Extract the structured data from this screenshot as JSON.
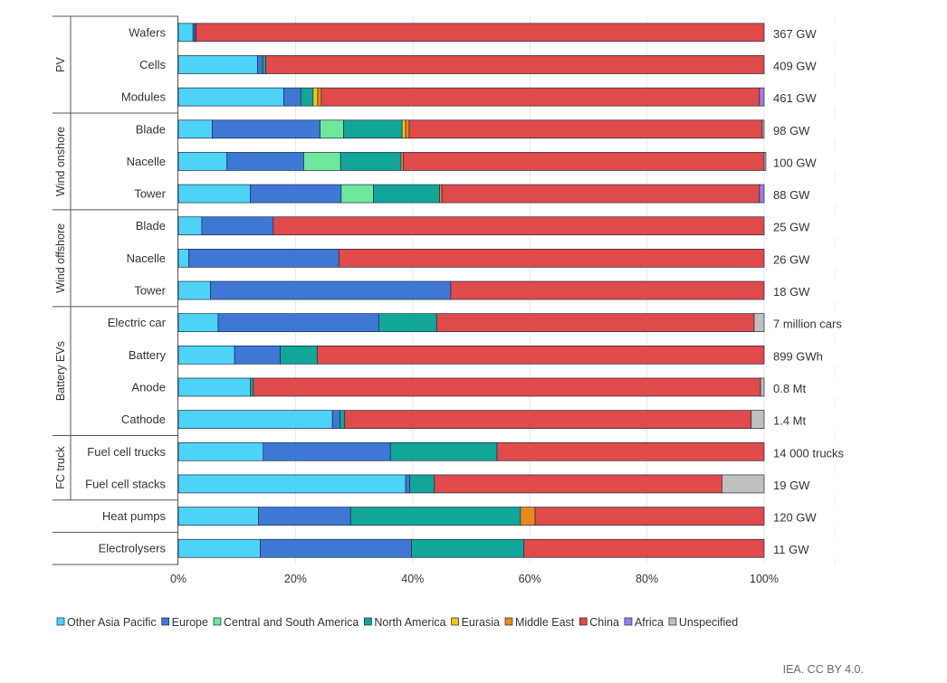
{
  "chart_data": {
    "type": "bar",
    "orientation": "horizontal",
    "stacked": true,
    "title": "",
    "xlabel": "",
    "ylabel": "",
    "xlim": [
      0,
      100
    ],
    "x_ticks": [
      "0%",
      "20%",
      "40%",
      "60%",
      "80%",
      "100%"
    ],
    "grid": "vertical",
    "legend_position": "bottom",
    "groups": [
      {
        "label": "PV",
        "categories": [
          "Wafers",
          "Cells",
          "Modules"
        ]
      },
      {
        "label": "Wind onshore",
        "categories": [
          "Blade",
          "Nacelle",
          "Tower"
        ]
      },
      {
        "label": "Wind offshore",
        "categories": [
          "Blade",
          "Nacelle",
          "Tower"
        ]
      },
      {
        "label": "Battery EVs",
        "categories": [
          "Electric car",
          "Battery",
          "Anode",
          "Cathode"
        ]
      },
      {
        "label": "FC truck",
        "categories": [
          "Fuel cell trucks",
          "Fuel cell stacks"
        ]
      },
      {
        "label": "",
        "categories": [
          "Heat pumps"
        ]
      },
      {
        "label": "",
        "categories": [
          "Electrolysers"
        ]
      }
    ],
    "categories": [
      "Wafers",
      "Cells",
      "Modules",
      "Blade",
      "Nacelle",
      "Tower",
      "Blade",
      "Nacelle",
      "Tower",
      "Electric car",
      "Battery",
      "Anode",
      "Cathode",
      "Fuel cell trucks",
      "Fuel cell stacks",
      "Heat pumps",
      "Electrolysers"
    ],
    "capacity_labels": [
      "367 GW",
      "409 GW",
      "461 GW",
      "98 GW",
      "100 GW",
      "88 GW",
      "25 GW",
      "26 GW",
      "18 GW",
      "7 million cars",
      "899 GWh",
      "0.8 Mt",
      "1.4 Mt",
      "14 000 trucks",
      "19 GW",
      "120 GW",
      "11 GW"
    ],
    "series": [
      {
        "name": "Other Asia Pacific",
        "color": "#4dd3f7",
        "values": [
          2.5,
          13.5,
          18.0,
          5.8,
          8.3,
          12.3,
          4.0,
          1.8,
          5.5,
          6.8,
          9.6,
          12.3,
          26.3,
          14.5,
          38.8,
          13.7,
          14.0
        ]
      },
      {
        "name": "Europe",
        "color": "#3f78d4",
        "values": [
          0.3,
          0.9,
          2.9,
          18.4,
          13.1,
          15.5,
          12.2,
          25.6,
          41.0,
          27.4,
          7.8,
          0,
          1.3,
          21.7,
          0.7,
          15.7,
          25.8
        ]
      },
      {
        "name": "Central and South America",
        "color": "#6ee89e",
        "values": [
          0,
          0,
          0,
          4.0,
          6.3,
          5.5,
          0,
          0,
          0,
          0,
          0,
          0,
          0,
          0,
          0,
          0,
          0
        ]
      },
      {
        "name": "North America",
        "color": "#12a59a",
        "values": [
          0.2,
          0.5,
          2.1,
          10.0,
          10.3,
          11.3,
          0,
          0,
          0,
          9.9,
          6.3,
          0.5,
          0.8,
          18.2,
          4.2,
          29.0,
          19.2
        ]
      },
      {
        "name": "Eurasia",
        "color": "#f0c419",
        "values": [
          0,
          0,
          0.8,
          0.6,
          0,
          0,
          0,
          0,
          0,
          0,
          0,
          0,
          0,
          0,
          0,
          0,
          0
        ]
      },
      {
        "name": "Middle East",
        "color": "#e88a1a",
        "values": [
          0,
          0,
          0.6,
          0.6,
          0.4,
          0.4,
          0,
          0,
          0,
          0,
          0,
          0,
          0,
          0,
          0,
          2.5,
          0
        ]
      },
      {
        "name": "China",
        "color": "#e04a4a",
        "values": [
          97.0,
          85.1,
          74.8,
          60.3,
          61.6,
          54.2,
          83.8,
          72.6,
          53.5,
          54.2,
          76.3,
          86.6,
          69.4,
          45.6,
          49.1,
          39.1,
          41.0
        ]
      },
      {
        "name": "Africa",
        "color": "#9b7ce8",
        "values": [
          0,
          0,
          0.8,
          0,
          0,
          0.8,
          0,
          0,
          0,
          0,
          0,
          0,
          0,
          0,
          0,
          0,
          0
        ]
      },
      {
        "name": "Unspecified",
        "color": "#c0c0c0",
        "values": [
          0,
          0,
          0,
          0.3,
          0.3,
          0,
          0,
          0,
          0,
          1.7,
          0,
          0.6,
          2.2,
          0,
          7.2,
          0,
          0
        ]
      }
    ]
  },
  "footer": {
    "credit": "IEA. CC BY 4.0."
  }
}
